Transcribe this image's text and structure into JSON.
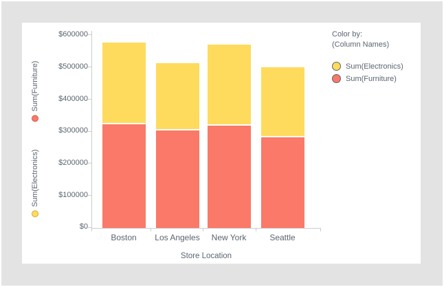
{
  "colors": {
    "background": "#e3e3e3",
    "card": "#ffffff",
    "text": "#5a646f",
    "axis_line": "#c7ccd2",
    "furniture": "#fa7968",
    "furniture_stroke": "#cf5c4f",
    "electronics": "#fedb5c",
    "electronics_stroke": "#cfa93b"
  },
  "y_axis": {
    "measures": [
      {
        "label": "Sum(Furniture)",
        "series": "furniture"
      },
      {
        "label": "Sum(Electronics)",
        "series": "electronics"
      }
    ],
    "tick_labels": [
      "$600000",
      "$500000",
      "$400000",
      "$300000",
      "$200000",
      "$100000",
      "$0"
    ]
  },
  "x_axis": {
    "title": "Store Location"
  },
  "legend": {
    "title": "Color by:",
    "subtitle": "(Column Names)",
    "items": [
      {
        "label": "Sum(Electronics)",
        "series": "electronics"
      },
      {
        "label": "Sum(Furniture)",
        "series": "furniture"
      }
    ]
  },
  "chart_data": {
    "type": "bar",
    "stacked": true,
    "categories": [
      "Boston",
      "Los Angeles",
      "New York",
      "Seattle"
    ],
    "series": [
      {
        "name": "Sum(Furniture)",
        "color": "#fa7968",
        "values": [
          322000,
          303000,
          318000,
          281000
        ]
      },
      {
        "name": "Sum(Electronics)",
        "color": "#fedb5c",
        "values": [
          253000,
          208000,
          252000,
          216000
        ]
      }
    ],
    "totals": [
      575000,
      511000,
      570000,
      497000
    ],
    "title": "",
    "xlabel": "Store Location",
    "ylabel": "Sum(Furniture), Sum(Electronics)",
    "ylim": [
      0,
      600000
    ],
    "y_tick_step": 100000,
    "y_tick_format": "$",
    "grid": false,
    "legend_position": "right"
  }
}
